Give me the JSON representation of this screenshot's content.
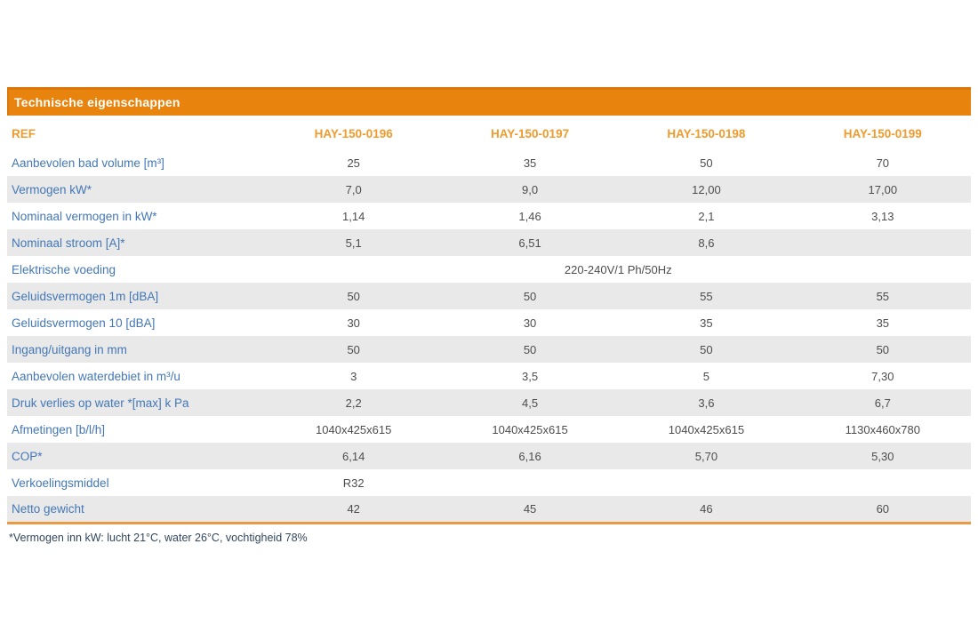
{
  "title_bar": {
    "text": "Technische eigenschappen"
  },
  "table": {
    "ref_header": "REF",
    "product_columns": [
      "HAY-150-0196",
      "HAY-150-0197",
      "HAY-150-0198",
      "HAY-150-0199"
    ],
    "rows": [
      {
        "label": "Aanbevolen bad volume [m³]",
        "values": [
          "25",
          "35",
          "50",
          "70"
        ]
      },
      {
        "label": "Vermogen kW*",
        "values": [
          "7,0",
          "9,0",
          "12,00",
          "17,00"
        ]
      },
      {
        "label": "Nominaal vermogen in kW*",
        "values": [
          "1,14",
          "1,46",
          "2,1",
          "3,13"
        ]
      },
      {
        "label": "Nominaal stroom [A]*",
        "values": [
          "5,1",
          "6,51",
          "8,6",
          ""
        ]
      },
      {
        "label": "Elektrische voeding",
        "span_value": "220-240V/1 Ph/50Hz"
      },
      {
        "label": "Geluidsvermogen 1m [dBA]",
        "values": [
          "50",
          "50",
          "55",
          "55"
        ]
      },
      {
        "label": "Geluidsvermogen 10 [dBA]",
        "values": [
          "30",
          "30",
          "35",
          "35"
        ]
      },
      {
        "label": "Ingang/uitgang in mm",
        "values": [
          "50",
          "50",
          "50",
          "50"
        ]
      },
      {
        "label": "Aanbevolen waterdebiet in m³/u",
        "values": [
          "3",
          "3,5",
          "5",
          "7,30"
        ]
      },
      {
        "label": "Druk verlies op water *[max] k Pa",
        "values": [
          "2,2",
          "4,5",
          "3,6",
          "6,7"
        ]
      },
      {
        "label": "Afmetingen [b/l/h]",
        "values": [
          "1040x425x615",
          "1040x425x615",
          "1040x425x615",
          "1130x460x780"
        ]
      },
      {
        "label": "COP*",
        "values": [
          "6,14",
          "6,16",
          "5,70",
          "5,30"
        ]
      },
      {
        "label": "Verkoelingsmiddel",
        "values": [
          "R32",
          "",
          "",
          ""
        ]
      },
      {
        "label": "Netto gewicht",
        "values": [
          "42",
          "45",
          "46",
          "60"
        ]
      }
    ]
  },
  "footnote": "*Vermogen inn kW: lucht 21°C, water 26°C, vochtigheid 78%",
  "colors": {
    "header_bar_bg": "#E8830D",
    "header_bar_text": "#FFFFFF",
    "product_header_text": "#EF9B2D",
    "row_label_text": "#4377B6",
    "value_text": "#4D4D4F",
    "stripe_bg": "#E9E9E9",
    "table_bottom_border": "#E89A45",
    "footnote_text": "#33475E"
  }
}
